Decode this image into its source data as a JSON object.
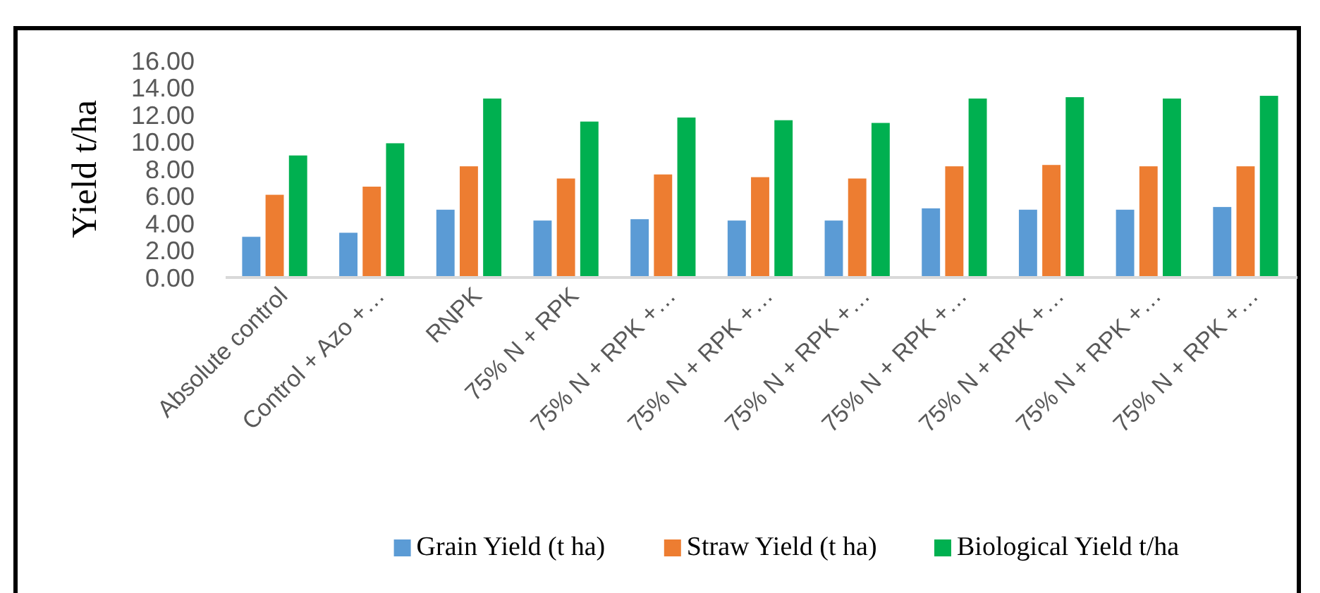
{
  "chart_data": {
    "type": "bar",
    "ylabel": "Yield t/ha",
    "categories": [
      "Absolute control",
      "Control + Azo +…",
      "RNPK",
      "75% N + RPK",
      "75% N + RPK +…",
      "75% N + RPK +…",
      "75% N + RPK +…",
      "75% N + RPK +…",
      "75% N + RPK +…",
      "75% N + RPK +…",
      "75% N + RPK +…"
    ],
    "series": [
      {
        "name": "Grain Yield (t ha)",
        "color": "#5b9bd5",
        "values": [
          3.0,
          3.3,
          5.0,
          4.2,
          4.3,
          4.2,
          4.2,
          5.1,
          5.0,
          5.0,
          5.2
        ]
      },
      {
        "name": "Straw Yield (t ha)",
        "color": "#ed7d31",
        "values": [
          6.1,
          6.7,
          8.2,
          7.3,
          7.6,
          7.4,
          7.3,
          8.2,
          8.3,
          8.2,
          8.2
        ]
      },
      {
        "name": "Biological Yield t/ha",
        "color": "#00b050",
        "values": [
          9.0,
          9.9,
          13.2,
          11.5,
          11.8,
          11.6,
          11.4,
          13.2,
          13.3,
          13.2,
          13.4
        ]
      }
    ],
    "ylim": [
      0,
      16
    ],
    "yticks": [
      {
        "value": 0,
        "label": "0.00"
      },
      {
        "value": 2,
        "label": "2.00"
      },
      {
        "value": 4,
        "label": "4.00"
      },
      {
        "value": 6,
        "label": "6.00"
      },
      {
        "value": 8,
        "label": "8.00"
      },
      {
        "value": 10,
        "label": "10.00"
      },
      {
        "value": 12,
        "label": "12.00"
      },
      {
        "value": 14,
        "label": "14.00"
      },
      {
        "value": 16,
        "label": "16.00"
      }
    ],
    "grid": false,
    "legend": "bottom"
  }
}
